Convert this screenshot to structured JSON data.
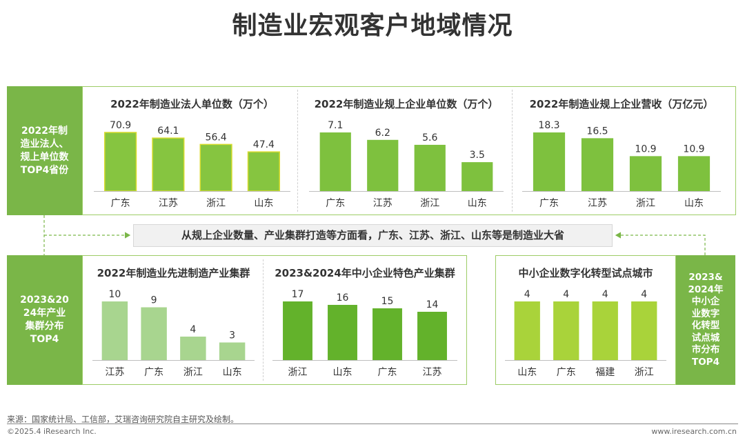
{
  "page": {
    "title": "制造业宏观客户地域情况",
    "callout": "从规上企业数量、产业集群打造等方面看，广东、江苏、浙江、山东等是制造业大省",
    "source": "来源：国家统计局、工信部，艾瑞咨询研究院自主研究及绘制。",
    "copyright": "©2025.4 iResearch Inc.",
    "website": "www.iresearch.com.cn"
  },
  "labels": {
    "top_left": [
      "2022年制",
      "造业法人、",
      "规上单位数",
      "TOP4省份"
    ],
    "bottom_left": [
      "2023&20",
      "24年产业",
      "集群分布",
      "TOP4"
    ],
    "bottom_right": [
      "2023&",
      "2024年",
      "中小企",
      "业数字",
      "化转型",
      "试点城",
      "市分布",
      "TOP4"
    ]
  },
  "colors": {
    "brand_green": "#7ab648",
    "bar_outlined_fill": "#86c540",
    "bar_outlined_stroke": "#d8dc2c",
    "bar_green": "#7ec13e",
    "bar_light": "#a8d58f",
    "bar_mid": "#63b22b",
    "bar_lime": "#a9d33a"
  },
  "chart_data": [
    {
      "id": "legal_units",
      "type": "bar",
      "title": "2022年制造业法人单位数（万个）",
      "categories": [
        "广东",
        "江苏",
        "浙江",
        "山东"
      ],
      "values": [
        70.9,
        64.1,
        56.4,
        47.4
      ],
      "labels": [
        "70.9",
        "64.1",
        "56.4",
        "47.4"
      ],
      "ylim": [
        0,
        70.9
      ],
      "color": "#86c540",
      "stroke": "#d8dc2c"
    },
    {
      "id": "large_units",
      "type": "bar",
      "title": "2022年制造业规上企业单位数（万个）",
      "categories": [
        "广东",
        "江苏",
        "浙江",
        "山东"
      ],
      "values": [
        7.1,
        6.2,
        5.6,
        3.5
      ],
      "labels": [
        "7.1",
        "6.2",
        "5.6",
        "3.5"
      ],
      "ylim": [
        0,
        7.1
      ],
      "color": "#7ec13e"
    },
    {
      "id": "revenue",
      "type": "bar",
      "title": "2022年制造业规上企业营收（万亿元）",
      "categories": [
        "广东",
        "江苏",
        "浙江",
        "山东"
      ],
      "values": [
        18.3,
        16.5,
        10.9,
        10.9
      ],
      "labels": [
        "18.3",
        "16.5",
        "10.9",
        "10.9"
      ],
      "ylim": [
        0,
        18.3
      ],
      "color": "#7ec13e"
    },
    {
      "id": "advanced_clusters",
      "type": "bar",
      "title": "2022年制造业先进制造产业集群",
      "categories": [
        "江苏",
        "广东",
        "浙江",
        "山东"
      ],
      "values": [
        10,
        9,
        4,
        3
      ],
      "labels": [
        "10",
        "9",
        "4",
        "3"
      ],
      "ylim": [
        0,
        10
      ],
      "color": "#a8d58f"
    },
    {
      "id": "sme_clusters",
      "type": "bar",
      "title": "2023&2024年中小企业特色产业集群",
      "categories": [
        "浙江",
        "山东",
        "广东",
        "江苏"
      ],
      "values": [
        17,
        16,
        15,
        14
      ],
      "labels": [
        "17",
        "16",
        "15",
        "14"
      ],
      "ylim": [
        0,
        17
      ],
      "color": "#63b22b"
    },
    {
      "id": "digital_pilot",
      "type": "bar",
      "title": "中小企业数字化转型试点城市",
      "categories": [
        "山东",
        "广东",
        "福建",
        "浙江"
      ],
      "values": [
        4,
        4,
        4,
        4
      ],
      "labels": [
        "4",
        "4",
        "4",
        "4"
      ],
      "ylim": [
        0,
        4
      ],
      "color": "#a9d33a"
    }
  ]
}
